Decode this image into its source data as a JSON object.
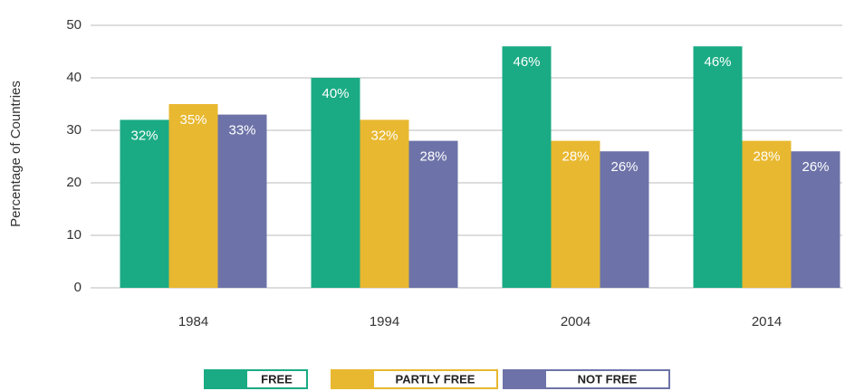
{
  "chart_data": {
    "type": "bar",
    "y_label": "Percentage of Countries",
    "categories": [
      "1984",
      "1994",
      "2004",
      "2014"
    ],
    "series": [
      {
        "name": "FREE",
        "color": "#1aab84",
        "values": [
          32,
          40,
          46,
          46
        ],
        "value_labels": [
          "32%",
          "40%",
          "46%",
          "46%"
        ]
      },
      {
        "name": "PARTLY FREE",
        "color": "#e8b830",
        "values": [
          35,
          32,
          28,
          28
        ],
        "value_labels": [
          "35%",
          "32%",
          "28%",
          "28%"
        ]
      },
      {
        "name": "NOT FREE",
        "color": "#6d73a8",
        "values": [
          33,
          28,
          26,
          26
        ],
        "value_labels": [
          "33%",
          "28%",
          "26%",
          "26%"
        ]
      }
    ],
    "ylim": [
      0,
      50
    ],
    "yticks": [
      0,
      10,
      20,
      30,
      40,
      50
    ],
    "grid": true,
    "legend": "bottom"
  }
}
